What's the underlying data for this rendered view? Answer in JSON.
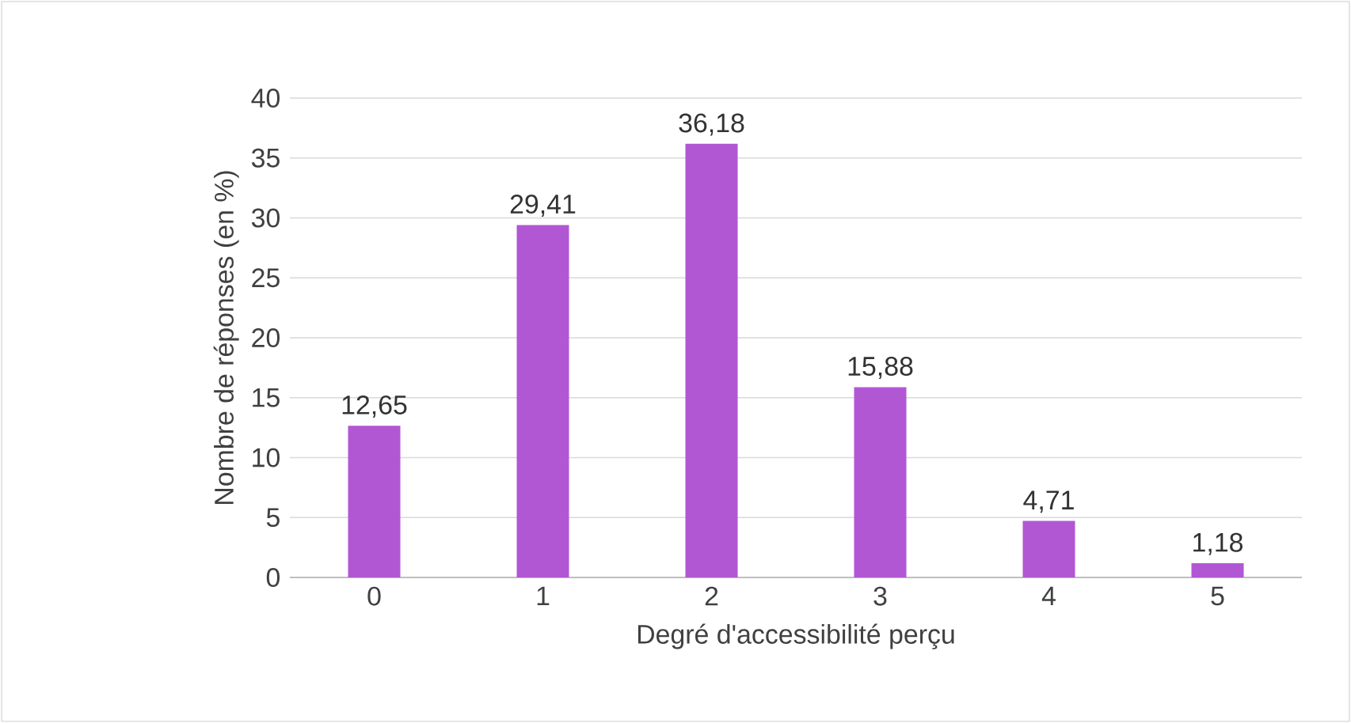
{
  "chart_data": {
    "type": "bar",
    "xlabel": "Degré d'accessibilité perçu",
    "ylabel": "Nombre de réponses (en %)",
    "categories": [
      "0",
      "1",
      "2",
      "3",
      "4",
      "5"
    ],
    "values": [
      12.65,
      29.41,
      36.18,
      15.88,
      4.71,
      1.18
    ],
    "value_labels": [
      "12,65",
      "29,41",
      "36,18",
      "15,88",
      "4,71",
      "1,18"
    ],
    "color": "#b157d4",
    "ylim": [
      0,
      40
    ],
    "yticks": [
      0,
      5,
      10,
      15,
      20,
      25,
      30,
      35,
      40
    ],
    "grid": "y"
  }
}
